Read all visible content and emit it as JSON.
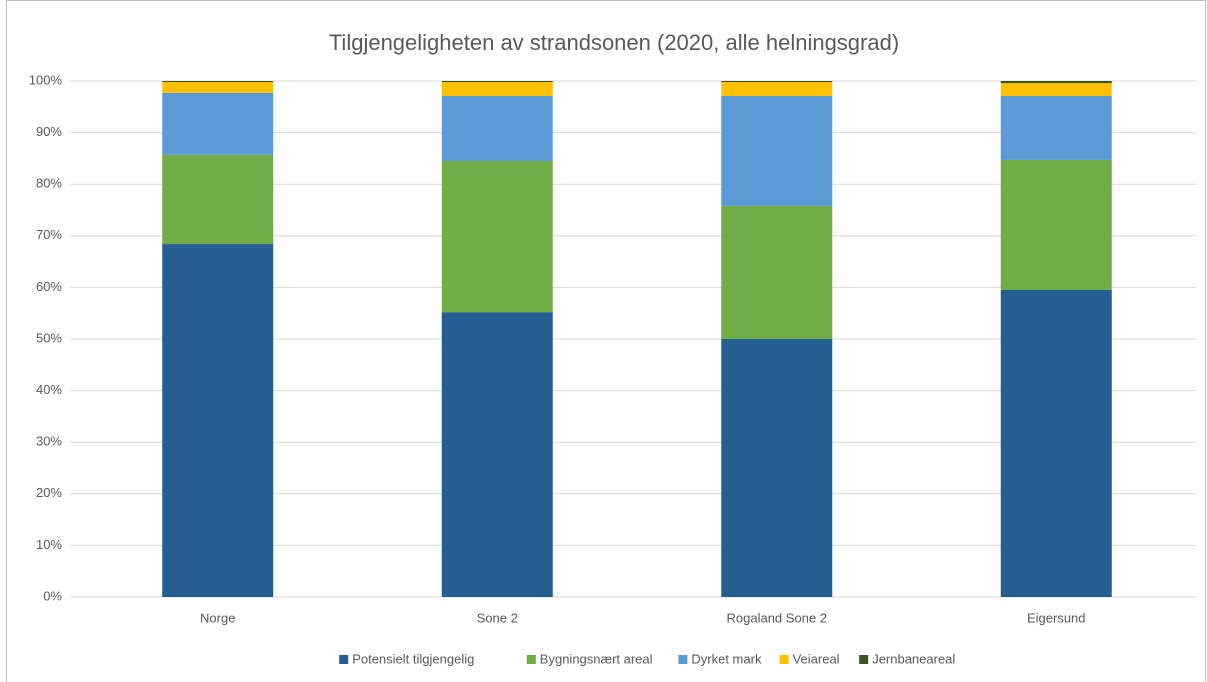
{
  "chart_data": {
    "type": "stacked_bar",
    "title": "Tilgjengeligheten  av strandsonen (2020, alle helningsgrad)",
    "categories": [
      "Norge",
      "Sone 2",
      "Rogaland Sone 2",
      "Eigersund"
    ],
    "series": [
      {
        "name": "Potensielt tilgjengelig",
        "color": "#255e91",
        "values": [
          68.4,
          55.2,
          50.0,
          59.5
        ]
      },
      {
        "name": "Bygningsnært areal",
        "color": "#70ad47",
        "values": [
          17.3,
          29.3,
          25.8,
          25.2
        ]
      },
      {
        "name": "Dyrket mark",
        "color": "#5b9bd5",
        "values": [
          12.0,
          12.6,
          21.3,
          12.4
        ]
      },
      {
        "name": "Veiareal",
        "color": "#ffc000",
        "values": [
          2.1,
          2.7,
          2.7,
          2.5
        ]
      },
      {
        "name": "Jernbaneareal",
        "color": "#375623",
        "values": [
          0.2,
          0.2,
          0.2,
          0.4
        ]
      }
    ],
    "ylim": [
      0,
      100
    ],
    "yticks": [
      {
        "value": 0,
        "label": "0%"
      },
      {
        "value": 10,
        "label": "10%"
      },
      {
        "value": 20,
        "label": "20%"
      },
      {
        "value": 30,
        "label": "30%"
      },
      {
        "value": 40,
        "label": "40%"
      },
      {
        "value": 50,
        "label": "50%"
      },
      {
        "value": 60,
        "label": "60%"
      },
      {
        "value": 70,
        "label": "70%"
      },
      {
        "value": 80,
        "label": "80%"
      },
      {
        "value": 90,
        "label": "90%"
      },
      {
        "value": 100,
        "label": "100%"
      }
    ],
    "grid": true,
    "legend": "bottom"
  }
}
